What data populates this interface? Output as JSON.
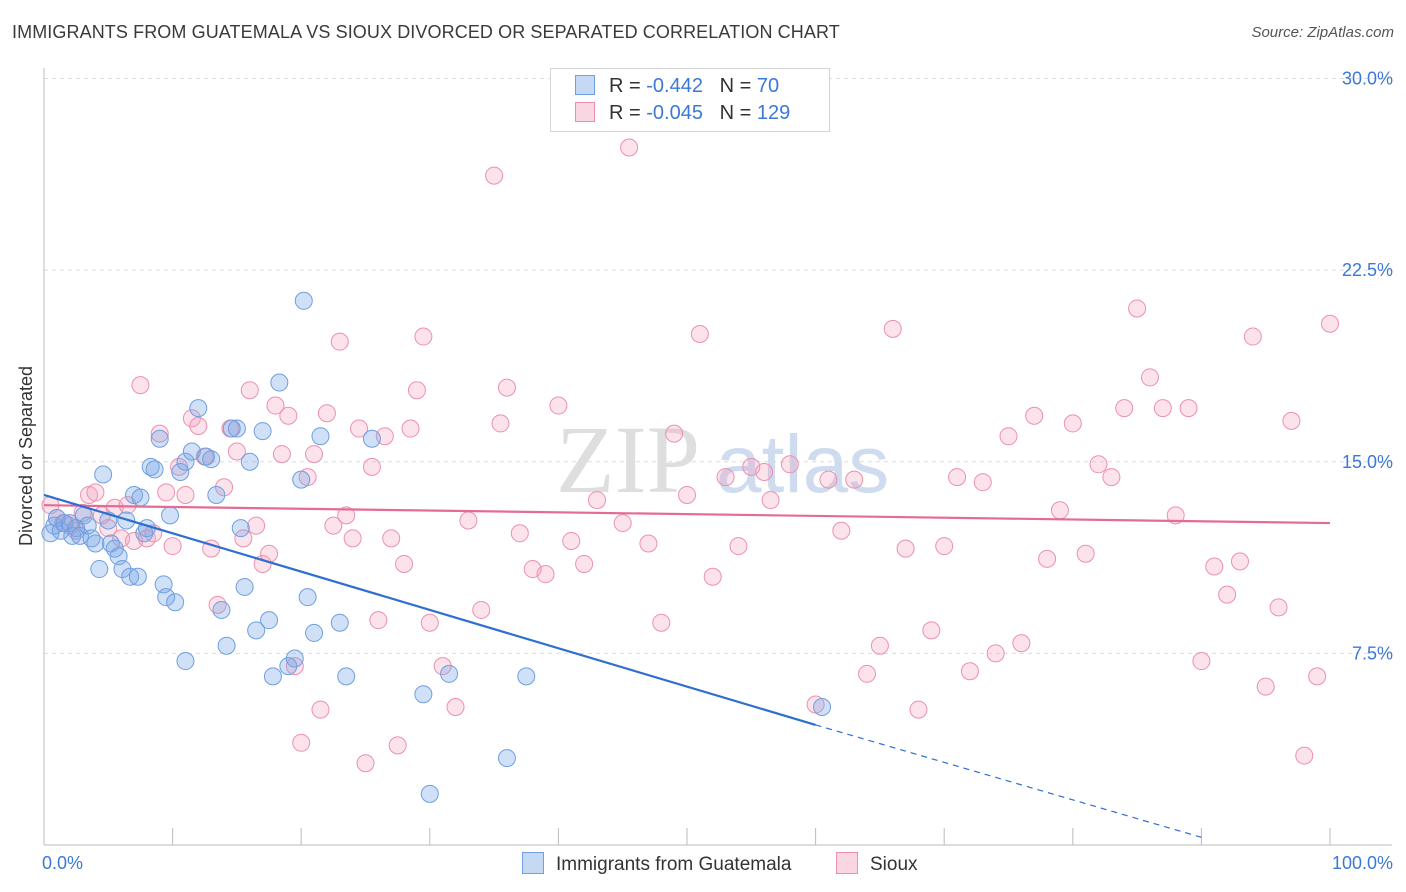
{
  "header": {
    "title": "IMMIGRANTS FROM GUATEMALA VS SIOUX DIVORCED OR SEPARATED CORRELATION CHART",
    "source": "Source: ZipAtlas.com"
  },
  "watermark": {
    "zip": "ZIP",
    "atlas": "atlas"
  },
  "legend": {
    "rows": [
      {
        "r_label": "R =",
        "r_value": "-0.442",
        "n_label": "N =",
        "n_value": "70",
        "color": "#a8c8f0",
        "border": "#6f9fe0"
      },
      {
        "r_label": "R =",
        "r_value": "-0.045",
        "n_label": "N =",
        "n_value": "129",
        "color": "#f7c3d3",
        "border": "#ec91ad"
      }
    ]
  },
  "bottom_legend": {
    "series1": "Immigrants from Guatemala",
    "series2": "Sioux"
  },
  "colors": {
    "blue_fill": "rgba(120,165,230,0.35)",
    "blue_stroke": "#6f9fe0",
    "blue_line": "#2f6fd0",
    "pink_fill": "rgba(242,160,188,0.30)",
    "pink_stroke": "#ec91ad",
    "pink_line": "#e56b94",
    "axis_text": "#3b78d8",
    "grid": "#dcdcdc"
  },
  "chart_data": {
    "type": "scatter",
    "title": "IMMIGRANTS FROM GUATEMALA VS SIOUX DIVORCED OR SEPARATED CORRELATION CHART",
    "xlabel": "",
    "ylabel": "Divorced or Separated",
    "xlim": [
      0,
      100
    ],
    "ylim": [
      0,
      31
    ],
    "x_tick_labels": [
      "0.0%",
      "100.0%"
    ],
    "y_ticks": [
      7.5,
      15.0,
      22.5,
      30.0
    ],
    "y_tick_labels": [
      "7.5%",
      "15.0%",
      "22.5%",
      "30.0%"
    ],
    "grid": "horizontal dashed",
    "legend_position": "top-center",
    "series": [
      {
        "name": "Immigrants from Guatemala",
        "color": "#6f9fe0",
        "trend": {
          "x": [
            0,
            60
          ],
          "y": [
            13.7,
            4.7
          ],
          "dashed_extension_to": [
            90,
            0.3
          ]
        },
        "points": [
          [
            0.5,
            12.2
          ],
          [
            0.8,
            12.5
          ],
          [
            1.0,
            12.8
          ],
          [
            1.3,
            12.3
          ],
          [
            1.6,
            12.6
          ],
          [
            2.0,
            12.6
          ],
          [
            2.2,
            12.1
          ],
          [
            2.5,
            12.4
          ],
          [
            2.8,
            12.1
          ],
          [
            3.1,
            12.9
          ],
          [
            3.4,
            12.5
          ],
          [
            3.7,
            12.0
          ],
          [
            4.0,
            11.8
          ],
          [
            4.3,
            10.8
          ],
          [
            4.6,
            14.5
          ],
          [
            5.0,
            12.7
          ],
          [
            5.2,
            11.8
          ],
          [
            5.5,
            11.6
          ],
          [
            5.8,
            11.3
          ],
          [
            6.1,
            10.8
          ],
          [
            6.4,
            12.7
          ],
          [
            6.7,
            10.5
          ],
          [
            7.0,
            13.7
          ],
          [
            7.3,
            10.5
          ],
          [
            7.5,
            13.6
          ],
          [
            7.8,
            12.2
          ],
          [
            8.0,
            12.4
          ],
          [
            8.3,
            14.8
          ],
          [
            8.6,
            14.7
          ],
          [
            9.0,
            15.9
          ],
          [
            9.3,
            10.2
          ],
          [
            9.5,
            9.7
          ],
          [
            9.8,
            12.9
          ],
          [
            10.2,
            9.5
          ],
          [
            10.6,
            14.6
          ],
          [
            11.0,
            15.0
          ],
          [
            11.5,
            15.4
          ],
          [
            12.0,
            17.1
          ],
          [
            12.6,
            15.2
          ],
          [
            13.0,
            15.1
          ],
          [
            13.4,
            13.7
          ],
          [
            13.8,
            9.2
          ],
          [
            14.2,
            7.8
          ],
          [
            14.6,
            16.3
          ],
          [
            15.0,
            16.3
          ],
          [
            15.3,
            12.4
          ],
          [
            15.6,
            10.1
          ],
          [
            16.0,
            15.0
          ],
          [
            16.5,
            8.4
          ],
          [
            17.0,
            16.2
          ],
          [
            17.5,
            8.8
          ],
          [
            17.8,
            6.6
          ],
          [
            18.3,
            18.1
          ],
          [
            19.0,
            7.0
          ],
          [
            19.5,
            7.3
          ],
          [
            20.0,
            14.3
          ],
          [
            20.2,
            21.3
          ],
          [
            20.5,
            9.7
          ],
          [
            21.0,
            8.3
          ],
          [
            21.5,
            16.0
          ],
          [
            23.0,
            8.7
          ],
          [
            23.5,
            6.6
          ],
          [
            25.5,
            15.9
          ],
          [
            29.5,
            5.9
          ],
          [
            30.0,
            2.0
          ],
          [
            31.5,
            6.7
          ],
          [
            36.0,
            3.4
          ],
          [
            37.5,
            6.6
          ],
          [
            60.5,
            5.4
          ],
          [
            11.0,
            7.2
          ]
        ]
      },
      {
        "name": "Sioux",
        "color": "#ec91ad",
        "trend": {
          "x": [
            0,
            100
          ],
          "y": [
            13.3,
            12.6
          ]
        },
        "points": [
          [
            0.5,
            13.3
          ],
          [
            1.0,
            12.8
          ],
          [
            1.5,
            12.6
          ],
          [
            2.0,
            12.5
          ],
          [
            2.5,
            12.3
          ],
          [
            3.0,
            13.0
          ],
          [
            3.5,
            13.7
          ],
          [
            4.0,
            13.8
          ],
          [
            4.5,
            12.9
          ],
          [
            5.0,
            12.4
          ],
          [
            5.5,
            13.2
          ],
          [
            6.0,
            12.0
          ],
          [
            6.5,
            13.3
          ],
          [
            7.0,
            11.9
          ],
          [
            7.5,
            18.0
          ],
          [
            8.0,
            12.0
          ],
          [
            8.5,
            12.2
          ],
          [
            9.0,
            16.1
          ],
          [
            9.5,
            13.8
          ],
          [
            10.0,
            11.7
          ],
          [
            10.5,
            14.8
          ],
          [
            11.0,
            13.7
          ],
          [
            11.5,
            16.7
          ],
          [
            12.0,
            16.4
          ],
          [
            12.5,
            15.2
          ],
          [
            13.0,
            11.6
          ],
          [
            13.5,
            9.4
          ],
          [
            14.0,
            14.0
          ],
          [
            14.5,
            16.3
          ],
          [
            15.0,
            15.4
          ],
          [
            15.5,
            12.0
          ],
          [
            16.0,
            17.8
          ],
          [
            16.5,
            12.5
          ],
          [
            17.0,
            11.0
          ],
          [
            17.5,
            11.4
          ],
          [
            18.0,
            17.2
          ],
          [
            18.5,
            15.3
          ],
          [
            19.0,
            16.8
          ],
          [
            19.5,
            7.0
          ],
          [
            20.0,
            4.0
          ],
          [
            20.5,
            14.4
          ],
          [
            21.0,
            15.3
          ],
          [
            21.5,
            5.3
          ],
          [
            22.0,
            16.9
          ],
          [
            22.5,
            12.5
          ],
          [
            23.0,
            19.7
          ],
          [
            23.5,
            12.9
          ],
          [
            24.0,
            12.0
          ],
          [
            24.5,
            16.3
          ],
          [
            25.0,
            3.2
          ],
          [
            25.5,
            14.8
          ],
          [
            26.0,
            8.8
          ],
          [
            26.5,
            16.0
          ],
          [
            27.0,
            12.0
          ],
          [
            27.5,
            3.9
          ],
          [
            28.0,
            11.0
          ],
          [
            28.5,
            16.3
          ],
          [
            29.0,
            17.8
          ],
          [
            29.5,
            19.9
          ],
          [
            30.0,
            8.7
          ],
          [
            31.0,
            7.0
          ],
          [
            32.0,
            5.4
          ],
          [
            33.0,
            12.7
          ],
          [
            34.0,
            9.2
          ],
          [
            35.0,
            26.2
          ],
          [
            35.5,
            16.5
          ],
          [
            36.0,
            17.9
          ],
          [
            37.0,
            12.2
          ],
          [
            38.0,
            10.8
          ],
          [
            39.0,
            10.6
          ],
          [
            40.0,
            17.2
          ],
          [
            41.0,
            11.9
          ],
          [
            42.0,
            11.0
          ],
          [
            43.0,
            13.5
          ],
          [
            45.0,
            12.6
          ],
          [
            45.5,
            27.3
          ],
          [
            47.0,
            11.8
          ],
          [
            48.0,
            8.7
          ],
          [
            49.0,
            16.1
          ],
          [
            50.0,
            13.7
          ],
          [
            51.0,
            20.0
          ],
          [
            52.0,
            10.5
          ],
          [
            53.0,
            14.4
          ],
          [
            54.0,
            11.7
          ],
          [
            55.0,
            14.8
          ],
          [
            56.0,
            14.6
          ],
          [
            56.5,
            13.5
          ],
          [
            58.0,
            14.9
          ],
          [
            60.0,
            5.5
          ],
          [
            61.0,
            14.3
          ],
          [
            62.0,
            12.3
          ],
          [
            63.0,
            14.3
          ],
          [
            64.0,
            6.7
          ],
          [
            65.0,
            7.8
          ],
          [
            66.0,
            20.2
          ],
          [
            67.0,
            11.6
          ],
          [
            68.0,
            5.3
          ],
          [
            69.0,
            8.4
          ],
          [
            70.0,
            11.7
          ],
          [
            71.0,
            14.4
          ],
          [
            72.0,
            6.8
          ],
          [
            73.0,
            14.2
          ],
          [
            74.0,
            7.5
          ],
          [
            75.0,
            16.0
          ],
          [
            76.0,
            7.9
          ],
          [
            77.0,
            16.8
          ],
          [
            78.0,
            11.2
          ],
          [
            79.0,
            13.1
          ],
          [
            80.0,
            16.5
          ],
          [
            81.0,
            11.4
          ],
          [
            82.0,
            14.9
          ],
          [
            83.0,
            14.4
          ],
          [
            84.0,
            17.1
          ],
          [
            85.0,
            21.0
          ],
          [
            86.0,
            18.3
          ],
          [
            87.0,
            17.1
          ],
          [
            88.0,
            12.9
          ],
          [
            89.0,
            17.1
          ],
          [
            90.0,
            7.2
          ],
          [
            91.0,
            10.9
          ],
          [
            92.0,
            9.8
          ],
          [
            93.0,
            11.1
          ],
          [
            94.0,
            19.9
          ],
          [
            95.0,
            6.2
          ],
          [
            96.0,
            9.3
          ],
          [
            97.0,
            16.6
          ],
          [
            98.0,
            3.5
          ],
          [
            99.0,
            6.6
          ],
          [
            100.0,
            20.4
          ]
        ]
      }
    ]
  }
}
